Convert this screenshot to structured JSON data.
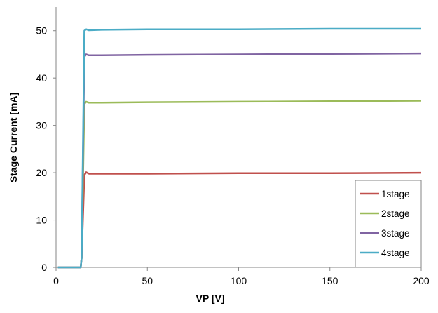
{
  "chart_data": {
    "type": "line",
    "title": "",
    "xlabel": "VP [V]",
    "ylabel": "Stage Current [mA]",
    "xlim": [
      0,
      200
    ],
    "ylim": [
      0,
      55
    ],
    "x_ticks": [
      0,
      50,
      100,
      150,
      200
    ],
    "y_ticks": [
      0,
      10,
      20,
      30,
      40,
      50
    ],
    "grid": false,
    "legend_position": "bottom-right",
    "series": [
      {
        "name": "1stage",
        "color": "#c0504d",
        "x": [
          1,
          8,
          13.5,
          14,
          15.5,
          16.5,
          18,
          25,
          50,
          100,
          150,
          200
        ],
        "y": [
          0,
          0,
          0,
          2,
          19.5,
          20.1,
          19.8,
          19.8,
          19.8,
          19.9,
          19.9,
          20.0
        ]
      },
      {
        "name": "2stage",
        "color": "#9bbb59",
        "x": [
          1,
          8,
          13.5,
          14,
          15.5,
          16.5,
          18,
          25,
          50,
          100,
          150,
          200
        ],
        "y": [
          0,
          0,
          0,
          2,
          34.5,
          35.0,
          34.8,
          34.8,
          34.9,
          35.0,
          35.1,
          35.2
        ]
      },
      {
        "name": "3stage",
        "color": "#8064a2",
        "x": [
          1,
          8,
          13.5,
          14,
          15.5,
          16.5,
          18,
          25,
          50,
          100,
          150,
          200
        ],
        "y": [
          0,
          0,
          0,
          2,
          44.5,
          45.0,
          44.8,
          44.8,
          44.9,
          45.0,
          45.1,
          45.2
        ]
      },
      {
        "name": "4stage",
        "color": "#4bacc6",
        "x": [
          1,
          8,
          13.5,
          14,
          15.5,
          16.5,
          18,
          25,
          50,
          100,
          150,
          200
        ],
        "y": [
          0,
          0,
          0,
          2,
          50.0,
          50.3,
          50.1,
          50.2,
          50.3,
          50.3,
          50.4,
          50.4
        ]
      }
    ]
  }
}
